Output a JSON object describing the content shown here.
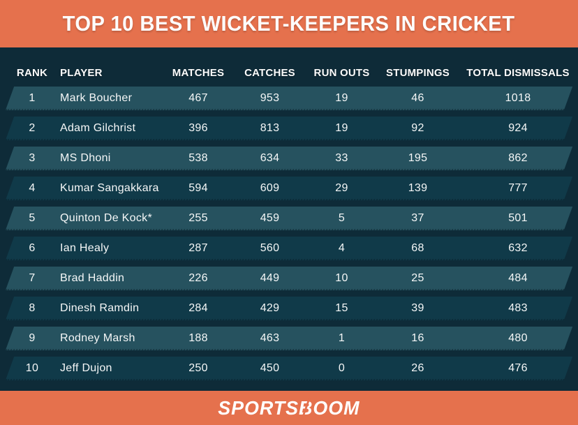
{
  "title": "TOP 10 BEST WICKET-KEEPERS IN CRICKET",
  "colors": {
    "orange": "#E5714D",
    "bg": "#0E2B38",
    "band-light": "#26525F",
    "band-dark": "#103A49",
    "text": "#F5F7F7"
  },
  "table": {
    "columns": [
      "RANK",
      "PLAYER",
      "MATCHES",
      "CATCHES",
      "RUN OUTS",
      "STUMPINGS",
      "TOTAL DISMISSALS"
    ],
    "rows": [
      {
        "rank": "1",
        "player": "Mark Boucher",
        "matches": "467",
        "catches": "953",
        "run_outs": "19",
        "stumpings": "46",
        "total": "1018"
      },
      {
        "rank": "2",
        "player": "Adam Gilchrist",
        "matches": "396",
        "catches": "813",
        "run_outs": "19",
        "stumpings": "92",
        "total": "924"
      },
      {
        "rank": "3",
        "player": "MS Dhoni",
        "matches": "538",
        "catches": "634",
        "run_outs": "33",
        "stumpings": "195",
        "total": "862"
      },
      {
        "rank": "4",
        "player": "Kumar Sangakkara",
        "matches": "594",
        "catches": "609",
        "run_outs": "29",
        "stumpings": "139",
        "total": "777"
      },
      {
        "rank": "5",
        "player": "Quinton De Kock*",
        "matches": "255",
        "catches": "459",
        "run_outs": "5",
        "stumpings": "37",
        "total": "501"
      },
      {
        "rank": "6",
        "player": "Ian Healy",
        "matches": "287",
        "catches": "560",
        "run_outs": "4",
        "stumpings": "68",
        "total": "632"
      },
      {
        "rank": "7",
        "player": "Brad Haddin",
        "matches": "226",
        "catches": "449",
        "run_outs": "10",
        "stumpings": "25",
        "total": "484"
      },
      {
        "rank": "8",
        "player": "Dinesh Ramdin",
        "matches": "284",
        "catches": "429",
        "run_outs": "15",
        "stumpings": "39",
        "total": "483"
      },
      {
        "rank": "9",
        "player": "Rodney Marsh",
        "matches": "188",
        "catches": "463",
        "run_outs": "1",
        "stumpings": "16",
        "total": "480"
      },
      {
        "rank": "10",
        "player": "Jeff Dujon",
        "matches": "250",
        "catches": "450",
        "run_outs": "0",
        "stumpings": "26",
        "total": "476"
      }
    ]
  },
  "footer": {
    "logo_part1": "SPORTS",
    "logo_b": "B",
    "logo_part2": "OOM"
  },
  "chart_data": {
    "type": "table",
    "title": "TOP 10 BEST WICKET-KEEPERS IN CRICKET",
    "columns": [
      "RANK",
      "PLAYER",
      "MATCHES",
      "CATCHES",
      "RUN OUTS",
      "STUMPINGS",
      "TOTAL DISMISSALS"
    ],
    "rows": [
      [
        1,
        "Mark Boucher",
        467,
        953,
        19,
        46,
        1018
      ],
      [
        2,
        "Adam Gilchrist",
        396,
        813,
        19,
        92,
        924
      ],
      [
        3,
        "MS Dhoni",
        538,
        634,
        33,
        195,
        862
      ],
      [
        4,
        "Kumar Sangakkara",
        594,
        609,
        29,
        139,
        777
      ],
      [
        5,
        "Quinton De Kock*",
        255,
        459,
        5,
        37,
        501
      ],
      [
        6,
        "Ian Healy",
        287,
        560,
        4,
        68,
        632
      ],
      [
        7,
        "Brad Haddin",
        226,
        449,
        10,
        25,
        484
      ],
      [
        8,
        "Dinesh Ramdin",
        284,
        429,
        15,
        39,
        483
      ],
      [
        9,
        "Rodney Marsh",
        188,
        463,
        1,
        16,
        480
      ],
      [
        10,
        "Jeff Dujon",
        250,
        450,
        0,
        26,
        476
      ]
    ]
  }
}
